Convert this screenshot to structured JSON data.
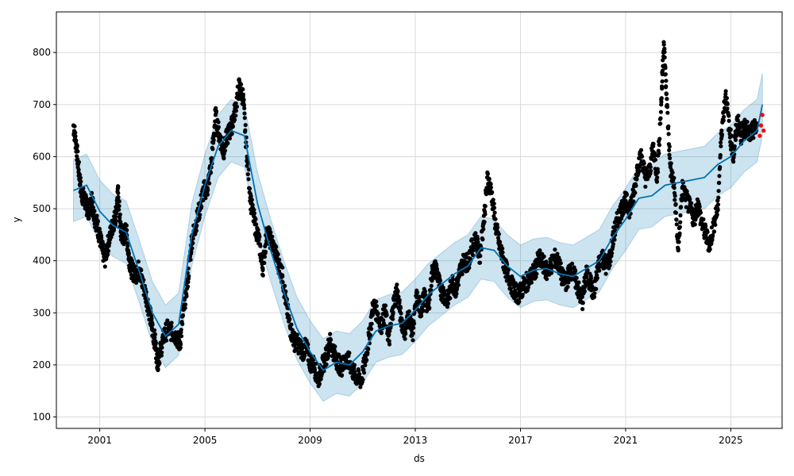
{
  "chart_data": {
    "type": "scatter",
    "title": "",
    "xlabel": "ds",
    "ylabel": "y",
    "xlim": [
      1999.35,
      2026.95
    ],
    "ylim": [
      78,
      878
    ],
    "x_ticks": [
      2001,
      2005,
      2009,
      2013,
      2017,
      2021,
      2025
    ],
    "y_ticks": [
      100,
      200,
      300,
      400,
      500,
      600,
      700,
      800
    ],
    "grid": true,
    "legend": "none",
    "colors": {
      "observed": "#000000",
      "forecast_line": "#0072B2",
      "interval": "#0072B2",
      "recent": "#ff0000",
      "grid": "#d9d9d9"
    },
    "series": [
      {
        "role": "observed",
        "kind": "scatter",
        "points": [
          [
            2000.0,
            660
          ],
          [
            2000.1,
            625
          ],
          [
            2000.2,
            575
          ],
          [
            2000.3,
            530
          ],
          [
            2000.4,
            520
          ],
          [
            2000.5,
            505
          ],
          [
            2000.6,
            495
          ],
          [
            2000.7,
            520
          ],
          [
            2000.8,
            485
          ],
          [
            2000.9,
            470
          ],
          [
            2001.0,
            445
          ],
          [
            2001.1,
            420
          ],
          [
            2001.2,
            405
          ],
          [
            2001.35,
            440
          ],
          [
            2001.5,
            470
          ],
          [
            2001.6,
            485
          ],
          [
            2001.7,
            530
          ],
          [
            2001.8,
            455
          ],
          [
            2001.9,
            445
          ],
          [
            2002.0,
            460
          ],
          [
            2002.1,
            410
          ],
          [
            2002.2,
            385
          ],
          [
            2002.35,
            372
          ],
          [
            2002.5,
            385
          ],
          [
            2002.6,
            362
          ],
          [
            2002.75,
            335
          ],
          [
            2002.9,
            300
          ],
          [
            2003.0,
            268
          ],
          [
            2003.1,
            245
          ],
          [
            2003.2,
            205
          ],
          [
            2003.3,
            225
          ],
          [
            2003.45,
            258
          ],
          [
            2003.6,
            270
          ],
          [
            2003.75,
            262
          ],
          [
            2003.9,
            255
          ],
          [
            2004.05,
            240
          ],
          [
            2004.2,
            310
          ],
          [
            2004.35,
            365
          ],
          [
            2004.5,
            440
          ],
          [
            2004.65,
            470
          ],
          [
            2004.8,
            500
          ],
          [
            2004.95,
            535
          ],
          [
            2005.1,
            540
          ],
          [
            2005.25,
            590
          ],
          [
            2005.4,
            680
          ],
          [
            2005.55,
            640
          ],
          [
            2005.7,
            610
          ],
          [
            2005.85,
            640
          ],
          [
            2006.0,
            655
          ],
          [
            2006.15,
            690
          ],
          [
            2006.3,
            735
          ],
          [
            2006.45,
            715
          ],
          [
            2006.6,
            600
          ],
          [
            2006.75,
            510
          ],
          [
            2006.9,
            470
          ],
          [
            2007.05,
            440
          ],
          [
            2007.2,
            385
          ],
          [
            2007.35,
            455
          ],
          [
            2007.5,
            440
          ],
          [
            2007.65,
            420
          ],
          [
            2007.8,
            395
          ],
          [
            2007.95,
            370
          ],
          [
            2008.1,
            315
          ],
          [
            2008.25,
            270
          ],
          [
            2008.4,
            245
          ],
          [
            2008.55,
            240
          ],
          [
            2008.7,
            225
          ],
          [
            2008.85,
            235
          ],
          [
            2009.0,
            205
          ],
          [
            2009.15,
            200
          ],
          [
            2009.3,
            170
          ],
          [
            2009.45,
            195
          ],
          [
            2009.6,
            215
          ],
          [
            2009.75,
            245
          ],
          [
            2009.9,
            225
          ],
          [
            2010.05,
            205
          ],
          [
            2010.2,
            195
          ],
          [
            2010.35,
            210
          ],
          [
            2010.5,
            205
          ],
          [
            2010.65,
            185
          ],
          [
            2010.8,
            175
          ],
          [
            2010.95,
            170
          ],
          [
            2011.1,
            210
          ],
          [
            2011.25,
            255
          ],
          [
            2011.4,
            315
          ],
          [
            2011.55,
            300
          ],
          [
            2011.7,
            275
          ],
          [
            2011.85,
            305
          ],
          [
            2012.0,
            245
          ],
          [
            2012.15,
            310
          ],
          [
            2012.3,
            345
          ],
          [
            2012.45,
            290
          ],
          [
            2012.6,
            265
          ],
          [
            2012.75,
            295
          ],
          [
            2012.9,
            260
          ],
          [
            2013.05,
            330
          ],
          [
            2013.2,
            305
          ],
          [
            2013.35,
            330
          ],
          [
            2013.5,
            310
          ],
          [
            2013.65,
            380
          ],
          [
            2013.8,
            385
          ],
          [
            2013.95,
            345
          ],
          [
            2014.1,
            335
          ],
          [
            2014.25,
            325
          ],
          [
            2014.4,
            360
          ],
          [
            2014.55,
            345
          ],
          [
            2014.7,
            380
          ],
          [
            2014.85,
            400
          ],
          [
            2015.0,
            395
          ],
          [
            2015.15,
            425
          ],
          [
            2015.3,
            440
          ],
          [
            2015.45,
            410
          ],
          [
            2015.6,
            475
          ],
          [
            2015.75,
            560
          ],
          [
            2015.9,
            530
          ],
          [
            2016.05,
            470
          ],
          [
            2016.2,
            430
          ],
          [
            2016.35,
            400
          ],
          [
            2016.5,
            375
          ],
          [
            2016.65,
            355
          ],
          [
            2016.8,
            340
          ],
          [
            2016.95,
            335
          ],
          [
            2017.1,
            350
          ],
          [
            2017.25,
            360
          ],
          [
            2017.4,
            370
          ],
          [
            2017.55,
            380
          ],
          [
            2017.7,
            405
          ],
          [
            2017.85,
            395
          ],
          [
            2018.0,
            380
          ],
          [
            2018.15,
            390
          ],
          [
            2018.3,
            405
          ],
          [
            2018.45,
            395
          ],
          [
            2018.6,
            365
          ],
          [
            2018.75,
            360
          ],
          [
            2018.9,
            385
          ],
          [
            2019.05,
            370
          ],
          [
            2019.2,
            345
          ],
          [
            2019.35,
            320
          ],
          [
            2019.5,
            375
          ],
          [
            2019.65,
            360
          ],
          [
            2019.8,
            330
          ],
          [
            2019.95,
            390
          ],
          [
            2020.1,
            410
          ],
          [
            2020.25,
            390
          ],
          [
            2020.4,
            405
          ],
          [
            2020.55,
            450
          ],
          [
            2020.7,
            480
          ],
          [
            2020.85,
            500
          ],
          [
            2021.0,
            515
          ],
          [
            2021.15,
            500
          ],
          [
            2021.3,
            525
          ],
          [
            2021.45,
            580
          ],
          [
            2021.6,
            600
          ],
          [
            2021.75,
            560
          ],
          [
            2021.9,
            570
          ],
          [
            2022.05,
            620
          ],
          [
            2022.2,
            560
          ],
          [
            2022.35,
            700
          ],
          [
            2022.45,
            820
          ],
          [
            2022.55,
            720
          ],
          [
            2022.7,
            580
          ],
          [
            2022.85,
            540
          ],
          [
            2023.0,
            420
          ],
          [
            2023.15,
            540
          ],
          [
            2023.3,
            520
          ],
          [
            2023.45,
            500
          ],
          [
            2023.6,
            480
          ],
          [
            2023.75,
            510
          ],
          [
            2023.9,
            470
          ],
          [
            2024.05,
            450
          ],
          [
            2024.2,
            430
          ],
          [
            2024.35,
            470
          ],
          [
            2024.5,
            500
          ],
          [
            2024.65,
            650
          ],
          [
            2024.8,
            720
          ],
          [
            2024.95,
            650
          ],
          [
            2025.1,
            600
          ],
          [
            2025.25,
            670
          ],
          [
            2025.4,
            640
          ],
          [
            2025.55,
            660
          ],
          [
            2025.7,
            640
          ],
          [
            2025.85,
            650
          ],
          [
            2026.0,
            660
          ]
        ]
      },
      {
        "role": "recent",
        "kind": "scatter",
        "points": [
          [
            2026.1,
            640
          ],
          [
            2026.15,
            660
          ],
          [
            2026.2,
            680
          ],
          [
            2026.25,
            650
          ]
        ]
      },
      {
        "role": "forecast_line",
        "kind": "line",
        "points": [
          [
            2000.0,
            535
          ],
          [
            2000.5,
            545
          ],
          [
            2001.0,
            495
          ],
          [
            2001.5,
            468
          ],
          [
            2002.0,
            455
          ],
          [
            2002.5,
            380
          ],
          [
            2003.0,
            300
          ],
          [
            2003.5,
            255
          ],
          [
            2004.0,
            278
          ],
          [
            2004.5,
            450
          ],
          [
            2005.0,
            545
          ],
          [
            2005.5,
            620
          ],
          [
            2006.0,
            650
          ],
          [
            2006.5,
            640
          ],
          [
            2007.0,
            510
          ],
          [
            2007.5,
            420
          ],
          [
            2008.0,
            340
          ],
          [
            2008.5,
            270
          ],
          [
            2009.0,
            225
          ],
          [
            2009.5,
            190
          ],
          [
            2010.0,
            205
          ],
          [
            2010.5,
            200
          ],
          [
            2011.0,
            225
          ],
          [
            2011.5,
            265
          ],
          [
            2012.0,
            275
          ],
          [
            2012.5,
            280
          ],
          [
            2013.0,
            305
          ],
          [
            2013.5,
            335
          ],
          [
            2014.0,
            355
          ],
          [
            2014.5,
            375
          ],
          [
            2015.0,
            390
          ],
          [
            2015.5,
            425
          ],
          [
            2016.0,
            420
          ],
          [
            2016.5,
            390
          ],
          [
            2017.0,
            370
          ],
          [
            2017.5,
            382
          ],
          [
            2018.0,
            385
          ],
          [
            2018.5,
            375
          ],
          [
            2019.0,
            370
          ],
          [
            2019.5,
            385
          ],
          [
            2020.0,
            400
          ],
          [
            2020.5,
            445
          ],
          [
            2021.0,
            480
          ],
          [
            2021.5,
            520
          ],
          [
            2022.0,
            525
          ],
          [
            2022.5,
            545
          ],
          [
            2023.0,
            550
          ],
          [
            2023.5,
            555
          ],
          [
            2024.0,
            560
          ],
          [
            2024.5,
            585
          ],
          [
            2025.0,
            600
          ],
          [
            2025.5,
            630
          ],
          [
            2026.0,
            650
          ],
          [
            2026.2,
            700
          ]
        ]
      },
      {
        "role": "interval",
        "kind": "area",
        "half_width": 60
      }
    ]
  }
}
